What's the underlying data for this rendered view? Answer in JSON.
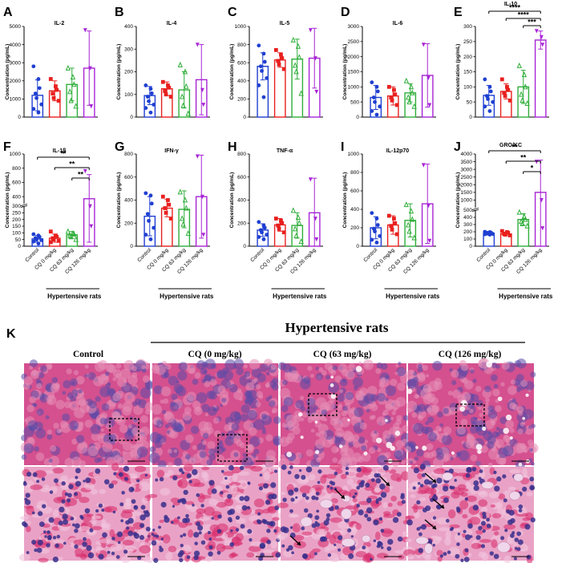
{
  "figure": {
    "groups": [
      "Control",
      "CQ 0 mg/kg",
      "CQ 63 mg/kg",
      "CQ 126 mg/kg"
    ],
    "group_colors": [
      "#1f3fd1",
      "#e8201e",
      "#2fae3a",
      "#a824d6"
    ],
    "x_group_label": "Hypertensive rats"
  },
  "chart_data": [
    {
      "panel": "A",
      "type": "bar",
      "title": "IL-2",
      "ylabel": "Concentration (pg/mL)",
      "ylim": [
        0,
        5000
      ],
      "yticks": [
        "0",
        "1000",
        "2000",
        "3000",
        "4000",
        "5000"
      ],
      "categories": [
        "Control",
        "CQ 0 mg/kg",
        "CQ 63 mg/kg",
        "CQ 126 mg/kg"
      ],
      "values": [
        1200,
        1450,
        1800,
        2700
      ],
      "errors": [
        850,
        550,
        900,
        2050
      ],
      "points": [
        [
          2800,
          2100,
          1600,
          1300,
          1050,
          700,
          450,
          250
        ],
        [
          2100,
          1700,
          1500,
          1300,
          1050,
          900
        ],
        [
          2700,
          2200,
          1800,
          1400,
          900,
          600
        ],
        [
          4800,
          2700,
          600
        ]
      ],
      "significance": []
    },
    {
      "panel": "B",
      "type": "bar",
      "title": "IL-4",
      "ylabel": "Concentration (pg/mL)",
      "ylim": [
        0,
        400
      ],
      "yticks": [
        "0",
        "100",
        "200",
        "300",
        "400"
      ],
      "categories": [
        "Control",
        "CQ 0 mg/kg",
        "CQ 63 mg/kg",
        "CQ 126 mg/kg"
      ],
      "values": [
        95,
        125,
        120,
        165
      ],
      "errors": [
        40,
        30,
        80,
        155
      ],
      "points": [
        [
          140,
          125,
          105,
          90,
          70,
          55,
          40,
          20
        ],
        [
          155,
          140,
          130,
          115,
          100,
          90
        ],
        [
          230,
          200,
          135,
          90,
          50,
          15
        ],
        [
          320,
          120,
          55
        ]
      ],
      "significance": []
    },
    {
      "panel": "C",
      "type": "bar",
      "title": "IL-5",
      "ylabel": "Concentration (pg/mL)",
      "ylim": [
        0,
        1000
      ],
      "yticks": [
        "0",
        "200",
        "400",
        "600",
        "800",
        "1000"
      ],
      "categories": [
        "Control",
        "CQ 0 mg/kg",
        "CQ 63 mg/kg",
        "CQ 126 mg/kg"
      ],
      "values": [
        560,
        630,
        640,
        650
      ],
      "errors": [
        150,
        80,
        220,
        330
      ],
      "points": [
        [
          790,
          700,
          610,
          560,
          510,
          430,
          350,
          220
        ],
        [
          740,
          690,
          650,
          620,
          580,
          530
        ],
        [
          850,
          780,
          660,
          570,
          500,
          260
        ],
        [
          960,
          650,
          280
        ]
      ],
      "significance": []
    },
    {
      "panel": "D",
      "type": "bar",
      "title": "IL-6",
      "ylabel": "Concentration (pg/mL)",
      "ylim": [
        0,
        3000
      ],
      "yticks": [
        "0",
        "500",
        "1000",
        "1500",
        "2000",
        "2500",
        "3000"
      ],
      "categories": [
        "Control",
        "CQ 0 mg/kg",
        "CQ 63 mg/kg",
        "CQ 126 mg/kg"
      ],
      "values": [
        650,
        700,
        800,
        1380
      ],
      "errors": [
        400,
        300,
        300,
        1050
      ],
      "points": [
        [
          1150,
          1000,
          850,
          650,
          500,
          350,
          200,
          80
        ],
        [
          1000,
          900,
          750,
          650,
          550,
          400
        ],
        [
          1200,
          1000,
          800,
          650,
          500,
          350
        ],
        [
          2400,
          1300,
          400
        ]
      ],
      "significance": []
    },
    {
      "panel": "E",
      "type": "bar",
      "title": "IL-10",
      "ylabel": "Concentration (pg/mL)",
      "ylim": [
        0,
        300
      ],
      "yticks": [
        "0",
        "50",
        "100",
        "150",
        "200",
        "250",
        "300"
      ],
      "categories": [
        "Control",
        "CQ 0 mg/kg",
        "CQ 63 mg/kg",
        "CQ 126 mg/kg"
      ],
      "values": [
        72,
        85,
        100,
        255
      ],
      "errors": [
        33,
        25,
        55,
        30
      ],
      "points": [
        [
          125,
          100,
          85,
          70,
          60,
          50,
          35,
          20
        ],
        [
          125,
          100,
          90,
          80,
          70,
          55
        ],
        [
          170,
          140,
          100,
          75,
          55,
          45
        ],
        [
          285,
          265,
          240
        ]
      ],
      "significance": [
        {
          "pair": [
            "Control",
            "CQ 126 mg/kg"
          ],
          "label": "****"
        },
        {
          "pair": [
            "CQ 0 mg/kg",
            "CQ 126 mg/kg"
          ],
          "label": "****"
        },
        {
          "pair": [
            "CQ 63 mg/kg",
            "CQ 126 mg/kg"
          ],
          "label": "***"
        }
      ]
    },
    {
      "panel": "F",
      "type": "bar",
      "title": "IL-1β",
      "ylabel": "Concentration (pg/mL)",
      "axis_break": true,
      "yticks": [
        "0",
        "50",
        "100",
        "150",
        "200",
        "250",
        "300",
        "400",
        "600",
        "800",
        "1000"
      ],
      "categories": [
        "Control",
        "CQ 0 mg/kg",
        "CQ 63 mg/kg",
        "CQ 126 mg/kg"
      ],
      "values": [
        55,
        60,
        85,
        370
      ],
      "errors": [
        25,
        30,
        25,
        340
      ],
      "points": [
        [
          90,
          80,
          70,
          60,
          50,
          45,
          35,
          20
        ],
        [
          110,
          80,
          70,
          60,
          50,
          40,
          30
        ],
        [
          110,
          95,
          90,
          80,
          70,
          50
        ],
        [
          760,
          300,
          150
        ]
      ],
      "significance": [
        {
          "pair": [
            "Control",
            "CQ 126 mg/kg"
          ],
          "label": "**"
        },
        {
          "pair": [
            "CQ 0 mg/kg",
            "CQ 126 mg/kg"
          ],
          "label": "**"
        },
        {
          "pair": [
            "CQ 63 mg/kg",
            "CQ 126 mg/kg"
          ],
          "label": "**"
        }
      ]
    },
    {
      "panel": "G",
      "type": "bar",
      "title": "IFN-γ",
      "ylabel": "Concentration (pg/mL)",
      "ylim": [
        0,
        800
      ],
      "yticks": [
        "0",
        "200",
        "400",
        "600",
        "800"
      ],
      "categories": [
        "Control",
        "CQ 0 mg/kg",
        "CQ 63 mg/kg",
        "CQ 126 mg/kg"
      ],
      "values": [
        260,
        330,
        320,
        430
      ],
      "errors": [
        170,
        75,
        160,
        360
      ],
      "points": [
        [
          460,
          440,
          370,
          280,
          220,
          160,
          100,
          60
        ],
        [
          430,
          400,
          360,
          330,
          290,
          240
        ],
        [
          470,
          400,
          330,
          240,
          190,
          110
        ],
        [
          780,
          430,
          100
        ]
      ],
      "significance": []
    },
    {
      "panel": "H",
      "type": "bar",
      "title": "TNF-α",
      "ylabel": "Concentration (pg/mL)",
      "ylim": [
        0,
        800
      ],
      "yticks": [
        "0",
        "200",
        "400",
        "600",
        "800"
      ],
      "categories": [
        "Control",
        "CQ 0 mg/kg",
        "CQ 63 mg/kg",
        "CQ 126 mg/kg"
      ],
      "values": [
        140,
        185,
        180,
        290
      ],
      "errors": [
        55,
        55,
        110,
        300
      ],
      "points": [
        [
          210,
          180,
          160,
          140,
          120,
          100,
          80,
          60
        ],
        [
          240,
          220,
          200,
          180,
          150,
          120
        ],
        [
          310,
          250,
          200,
          150,
          90,
          40
        ],
        [
          580,
          240,
          60
        ]
      ],
      "significance": []
    },
    {
      "panel": "I",
      "type": "bar",
      "title": "IL-12p70",
      "ylabel": "Concentration (pg/mL)",
      "ylim": [
        0,
        1000
      ],
      "yticks": [
        "0",
        "200",
        "400",
        "600",
        "800",
        "1000"
      ],
      "categories": [
        "Control",
        "CQ 0 mg/kg",
        "CQ 63 mg/kg",
        "CQ 126 mg/kg"
      ],
      "values": [
        200,
        230,
        280,
        460
      ],
      "errors": [
        120,
        100,
        180,
        430
      ],
      "points": [
        [
          360,
          300,
          230,
          190,
          160,
          110,
          70,
          40
        ],
        [
          330,
          300,
          250,
          220,
          180,
          130
        ],
        [
          450,
          380,
          290,
          230,
          160,
          90
        ],
        [
          880,
          440,
          60
        ]
      ],
      "significance": []
    },
    {
      "panel": "J",
      "type": "bar",
      "title": "GRO/KC",
      "ylabel": "Concentration (pg/mL)",
      "axis_break": true,
      "yticks": [
        "0",
        "100",
        "200",
        "300",
        "400",
        "500",
        "1000",
        "1500",
        "2000",
        "2500",
        "3000",
        "3500",
        "4000"
      ],
      "categories": [
        "Control",
        "CQ 0 mg/kg",
        "CQ 63 mg/kg",
        "CQ 126 mg/kg"
      ],
      "values": [
        180,
        170,
        370,
        1500
      ],
      "errors": [
        25,
        25,
        80,
        2100
      ],
      "points": [
        [
          200,
          195,
          190,
          180,
          175,
          170,
          165,
          160
        ],
        [
          210,
          195,
          185,
          170,
          160,
          150
        ],
        [
          470,
          410,
          370,
          340,
          310,
          280
        ],
        [
          3500,
          1000,
          250
        ]
      ],
      "significance": [
        {
          "pair": [
            "Control",
            "CQ 126 mg/kg"
          ],
          "label": "**"
        },
        {
          "pair": [
            "CQ 0 mg/kg",
            "CQ 126 mg/kg"
          ],
          "label": "**"
        },
        {
          "pair": [
            "CQ 63 mg/kg",
            "CQ 126 mg/kg"
          ],
          "label": "*"
        }
      ]
    }
  ],
  "histology": {
    "panel": "K",
    "title": "Hypertensive rats",
    "columns": [
      "Control",
      "CQ (0 mg/kg)",
      "CQ (63 mg/kg)",
      "CQ (126 mg/kg)"
    ],
    "stain_colors": {
      "pink": "#d4508f",
      "purple": "#5a4aa8",
      "pale": "#efd6ea"
    }
  }
}
